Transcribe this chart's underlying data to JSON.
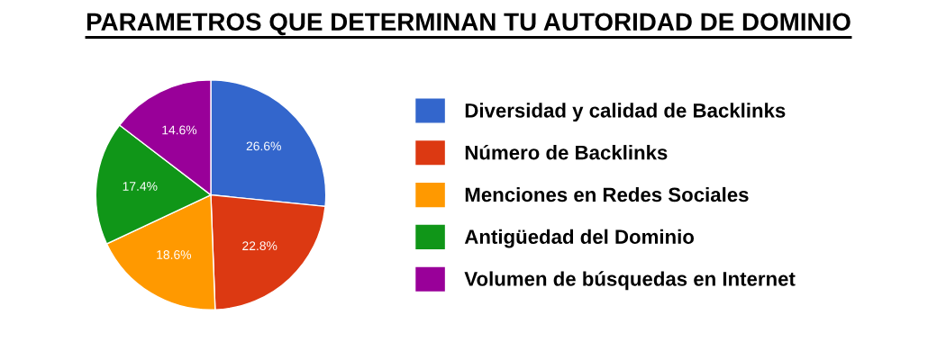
{
  "chart_data": {
    "type": "pie",
    "title": "PARAMETROS QUE DETERMINAN TU AUTORIDAD DE DOMINIO",
    "categories": [
      "Diversidad y calidad de Backlinks",
      "Número de Backlinks",
      "Menciones en Redes Sociales",
      "Antigüedad del Dominio",
      "Volumen de búsquedas en Internet"
    ],
    "values": [
      26.6,
      22.8,
      18.6,
      17.4,
      14.6
    ],
    "value_labels": [
      "26.6%",
      "22.8%",
      "18.6%",
      "17.4%",
      "14.6%"
    ],
    "colors": [
      "#3366cc",
      "#dc3912",
      "#ff9900",
      "#109618",
      "#990099"
    ],
    "legend": "right"
  }
}
